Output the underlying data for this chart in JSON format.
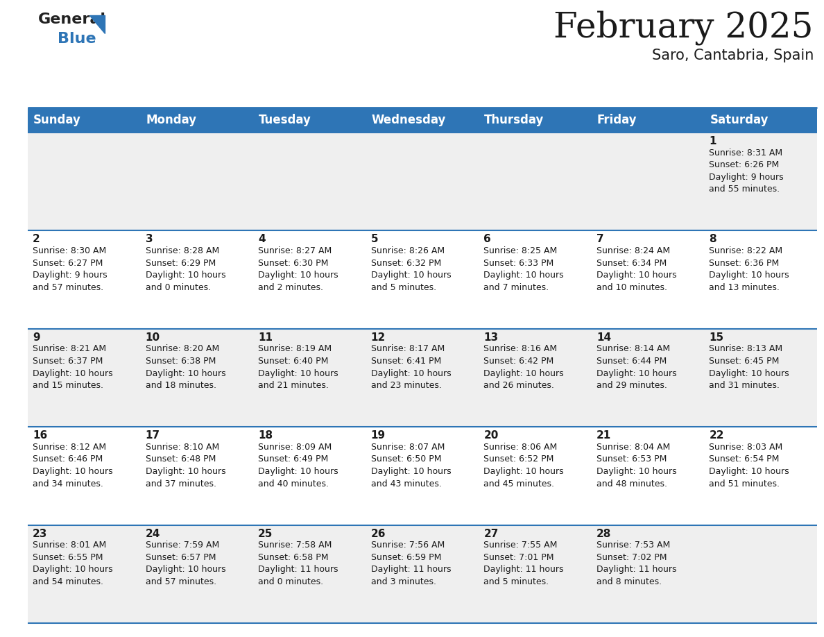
{
  "title": "February 2025",
  "subtitle": "Saro, Cantabria, Spain",
  "header_bg": "#2e75b6",
  "header_text_color": "#ffffff",
  "cell_bg_light": "#efefef",
  "cell_bg_white": "#ffffff",
  "cell_border_color": "#2e75b6",
  "text_color": "#1a1a1a",
  "day_names": [
    "Sunday",
    "Monday",
    "Tuesday",
    "Wednesday",
    "Thursday",
    "Friday",
    "Saturday"
  ],
  "days": [
    {
      "day": 1,
      "col": 6,
      "row": 0,
      "sunrise": "8:31 AM",
      "sunset": "6:26 PM",
      "daylight_h": "9 hours",
      "daylight_m": "and 55 minutes."
    },
    {
      "day": 2,
      "col": 0,
      "row": 1,
      "sunrise": "8:30 AM",
      "sunset": "6:27 PM",
      "daylight_h": "9 hours",
      "daylight_m": "and 57 minutes."
    },
    {
      "day": 3,
      "col": 1,
      "row": 1,
      "sunrise": "8:28 AM",
      "sunset": "6:29 PM",
      "daylight_h": "10 hours",
      "daylight_m": "and 0 minutes."
    },
    {
      "day": 4,
      "col": 2,
      "row": 1,
      "sunrise": "8:27 AM",
      "sunset": "6:30 PM",
      "daylight_h": "10 hours",
      "daylight_m": "and 2 minutes."
    },
    {
      "day": 5,
      "col": 3,
      "row": 1,
      "sunrise": "8:26 AM",
      "sunset": "6:32 PM",
      "daylight_h": "10 hours",
      "daylight_m": "and 5 minutes."
    },
    {
      "day": 6,
      "col": 4,
      "row": 1,
      "sunrise": "8:25 AM",
      "sunset": "6:33 PM",
      "daylight_h": "10 hours",
      "daylight_m": "and 7 minutes."
    },
    {
      "day": 7,
      "col": 5,
      "row": 1,
      "sunrise": "8:24 AM",
      "sunset": "6:34 PM",
      "daylight_h": "10 hours",
      "daylight_m": "and 10 minutes."
    },
    {
      "day": 8,
      "col": 6,
      "row": 1,
      "sunrise": "8:22 AM",
      "sunset": "6:36 PM",
      "daylight_h": "10 hours",
      "daylight_m": "and 13 minutes."
    },
    {
      "day": 9,
      "col": 0,
      "row": 2,
      "sunrise": "8:21 AM",
      "sunset": "6:37 PM",
      "daylight_h": "10 hours",
      "daylight_m": "and 15 minutes."
    },
    {
      "day": 10,
      "col": 1,
      "row": 2,
      "sunrise": "8:20 AM",
      "sunset": "6:38 PM",
      "daylight_h": "10 hours",
      "daylight_m": "and 18 minutes."
    },
    {
      "day": 11,
      "col": 2,
      "row": 2,
      "sunrise": "8:19 AM",
      "sunset": "6:40 PM",
      "daylight_h": "10 hours",
      "daylight_m": "and 21 minutes."
    },
    {
      "day": 12,
      "col": 3,
      "row": 2,
      "sunrise": "8:17 AM",
      "sunset": "6:41 PM",
      "daylight_h": "10 hours",
      "daylight_m": "and 23 minutes."
    },
    {
      "day": 13,
      "col": 4,
      "row": 2,
      "sunrise": "8:16 AM",
      "sunset": "6:42 PM",
      "daylight_h": "10 hours",
      "daylight_m": "and 26 minutes."
    },
    {
      "day": 14,
      "col": 5,
      "row": 2,
      "sunrise": "8:14 AM",
      "sunset": "6:44 PM",
      "daylight_h": "10 hours",
      "daylight_m": "and 29 minutes."
    },
    {
      "day": 15,
      "col": 6,
      "row": 2,
      "sunrise": "8:13 AM",
      "sunset": "6:45 PM",
      "daylight_h": "10 hours",
      "daylight_m": "and 31 minutes."
    },
    {
      "day": 16,
      "col": 0,
      "row": 3,
      "sunrise": "8:12 AM",
      "sunset": "6:46 PM",
      "daylight_h": "10 hours",
      "daylight_m": "and 34 minutes."
    },
    {
      "day": 17,
      "col": 1,
      "row": 3,
      "sunrise": "8:10 AM",
      "sunset": "6:48 PM",
      "daylight_h": "10 hours",
      "daylight_m": "and 37 minutes."
    },
    {
      "day": 18,
      "col": 2,
      "row": 3,
      "sunrise": "8:09 AM",
      "sunset": "6:49 PM",
      "daylight_h": "10 hours",
      "daylight_m": "and 40 minutes."
    },
    {
      "day": 19,
      "col": 3,
      "row": 3,
      "sunrise": "8:07 AM",
      "sunset": "6:50 PM",
      "daylight_h": "10 hours",
      "daylight_m": "and 43 minutes."
    },
    {
      "day": 20,
      "col": 4,
      "row": 3,
      "sunrise": "8:06 AM",
      "sunset": "6:52 PM",
      "daylight_h": "10 hours",
      "daylight_m": "and 45 minutes."
    },
    {
      "day": 21,
      "col": 5,
      "row": 3,
      "sunrise": "8:04 AM",
      "sunset": "6:53 PM",
      "daylight_h": "10 hours",
      "daylight_m": "and 48 minutes."
    },
    {
      "day": 22,
      "col": 6,
      "row": 3,
      "sunrise": "8:03 AM",
      "sunset": "6:54 PM",
      "daylight_h": "10 hours",
      "daylight_m": "and 51 minutes."
    },
    {
      "day": 23,
      "col": 0,
      "row": 4,
      "sunrise": "8:01 AM",
      "sunset": "6:55 PM",
      "daylight_h": "10 hours",
      "daylight_m": "and 54 minutes."
    },
    {
      "day": 24,
      "col": 1,
      "row": 4,
      "sunrise": "7:59 AM",
      "sunset": "6:57 PM",
      "daylight_h": "10 hours",
      "daylight_m": "and 57 minutes."
    },
    {
      "day": 25,
      "col": 2,
      "row": 4,
      "sunrise": "7:58 AM",
      "sunset": "6:58 PM",
      "daylight_h": "11 hours",
      "daylight_m": "and 0 minutes."
    },
    {
      "day": 26,
      "col": 3,
      "row": 4,
      "sunrise": "7:56 AM",
      "sunset": "6:59 PM",
      "daylight_h": "11 hours",
      "daylight_m": "and 3 minutes."
    },
    {
      "day": 27,
      "col": 4,
      "row": 4,
      "sunrise": "7:55 AM",
      "sunset": "7:01 PM",
      "daylight_h": "11 hours",
      "daylight_m": "and 5 minutes."
    },
    {
      "day": 28,
      "col": 5,
      "row": 4,
      "sunrise": "7:53 AM",
      "sunset": "7:02 PM",
      "daylight_h": "11 hours",
      "daylight_m": "and 8 minutes."
    }
  ],
  "num_rows": 5,
  "title_fontsize": 36,
  "subtitle_fontsize": 15,
  "header_fontsize": 12,
  "day_num_fontsize": 11,
  "cell_fontsize": 9
}
